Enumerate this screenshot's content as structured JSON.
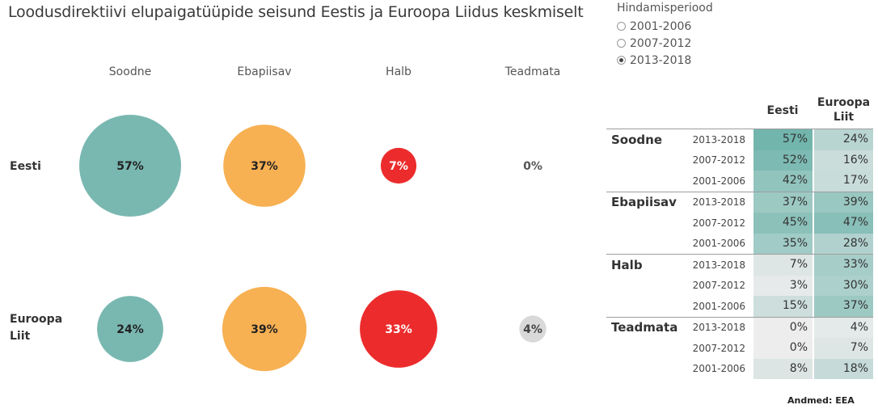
{
  "title": "Loodusdirektiivi elupaigatüüpide seisund Eestis ja Euroopa Liidus keskmiselt",
  "filter": {
    "title": "Hindamisperiood",
    "options": [
      {
        "label": "2001-2006",
        "selected": false
      },
      {
        "label": "2007-2012",
        "selected": false
      },
      {
        "label": "2013-2018",
        "selected": true
      }
    ]
  },
  "chart_data": [
    {
      "type": "scatter",
      "subtype": "bubble",
      "columns": [
        "Soodne",
        "Ebapiisav",
        "Halb",
        "Teadmata"
      ],
      "rows": [
        "Eesti",
        "Euroopa Liit"
      ],
      "colors": {
        "Soodne": "#79b8b1",
        "Ebapiisav": "#f7b052",
        "Halb": "#ec2c2c",
        "Teadmata": "#d9d9d9"
      },
      "label_colors": {
        "Soodne": "#222222",
        "Ebapiisav": "#222222",
        "Halb": "#ffffff",
        "Teadmata": "#444444"
      },
      "values": [
        [
          57,
          37,
          7,
          0
        ],
        [
          24,
          39,
          33,
          4
        ]
      ],
      "labels": [
        [
          "57%",
          "37%",
          "7%",
          "0%"
        ],
        [
          "24%",
          "39%",
          "33%",
          "4%"
        ]
      ]
    },
    {
      "type": "table",
      "column_headers": [
        "Eesti",
        "Euroopa Liit"
      ],
      "heat_colors": {
        "low": "#ededed",
        "high": "#72b5ad"
      },
      "groups": [
        {
          "name": "Soodne",
          "rows": [
            {
              "period": "2013-2018",
              "eesti": 57,
              "el": 24,
              "eesti_label": "57%",
              "el_label": "24%"
            },
            {
              "period": "2007-2012",
              "eesti": 52,
              "el": 16,
              "eesti_label": "52%",
              "el_label": "16%"
            },
            {
              "period": "2001-2006",
              "eesti": 42,
              "el": 17,
              "eesti_label": "42%",
              "el_label": "17%"
            }
          ]
        },
        {
          "name": "Ebapiisav",
          "rows": [
            {
              "period": "2013-2018",
              "eesti": 37,
              "el": 39,
              "eesti_label": "37%",
              "el_label": "39%"
            },
            {
              "period": "2007-2012",
              "eesti": 45,
              "el": 47,
              "eesti_label": "45%",
              "el_label": "47%"
            },
            {
              "period": "2001-2006",
              "eesti": 35,
              "el": 28,
              "eesti_label": "35%",
              "el_label": "28%"
            }
          ]
        },
        {
          "name": "Halb",
          "rows": [
            {
              "period": "2013-2018",
              "eesti": 7,
              "el": 33,
              "eesti_label": "7%",
              "el_label": "33%"
            },
            {
              "period": "2007-2012",
              "eesti": 3,
              "el": 30,
              "eesti_label": "3%",
              "el_label": "30%"
            },
            {
              "period": "2001-2006",
              "eesti": 15,
              "el": 37,
              "eesti_label": "15%",
              "el_label": "37%"
            }
          ]
        },
        {
          "name": "Teadmata",
          "rows": [
            {
              "period": "2013-2018",
              "eesti": 0,
              "el": 4,
              "eesti_label": "0%",
              "el_label": "4%"
            },
            {
              "period": "2007-2012",
              "eesti": 0,
              "el": 7,
              "eesti_label": "0%",
              "el_label": "7%"
            },
            {
              "period": "2001-2006",
              "eesti": 8,
              "el": 18,
              "eesti_label": "8%",
              "el_label": "18%"
            }
          ]
        }
      ]
    }
  ],
  "source": "Andmed: EEA"
}
